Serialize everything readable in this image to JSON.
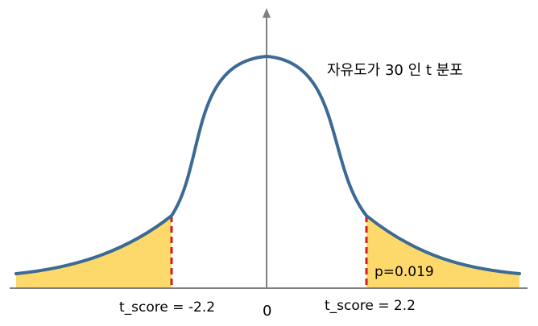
{
  "diagram": {
    "title": "자유도가 30 인 t 분포",
    "center_tick": "0",
    "left_label": "t_score = -2.2",
    "right_label": "t_score = 2.2",
    "area_label": "p=0.019",
    "degrees_of_freedom": 30,
    "critical_t": 2.2,
    "tail_probability": 0.019,
    "colors": {
      "curve": "#3d6a95",
      "tail_fill": "#fcd96a",
      "cutoff_line": "#cc1f1f",
      "axis": "#808080"
    }
  }
}
